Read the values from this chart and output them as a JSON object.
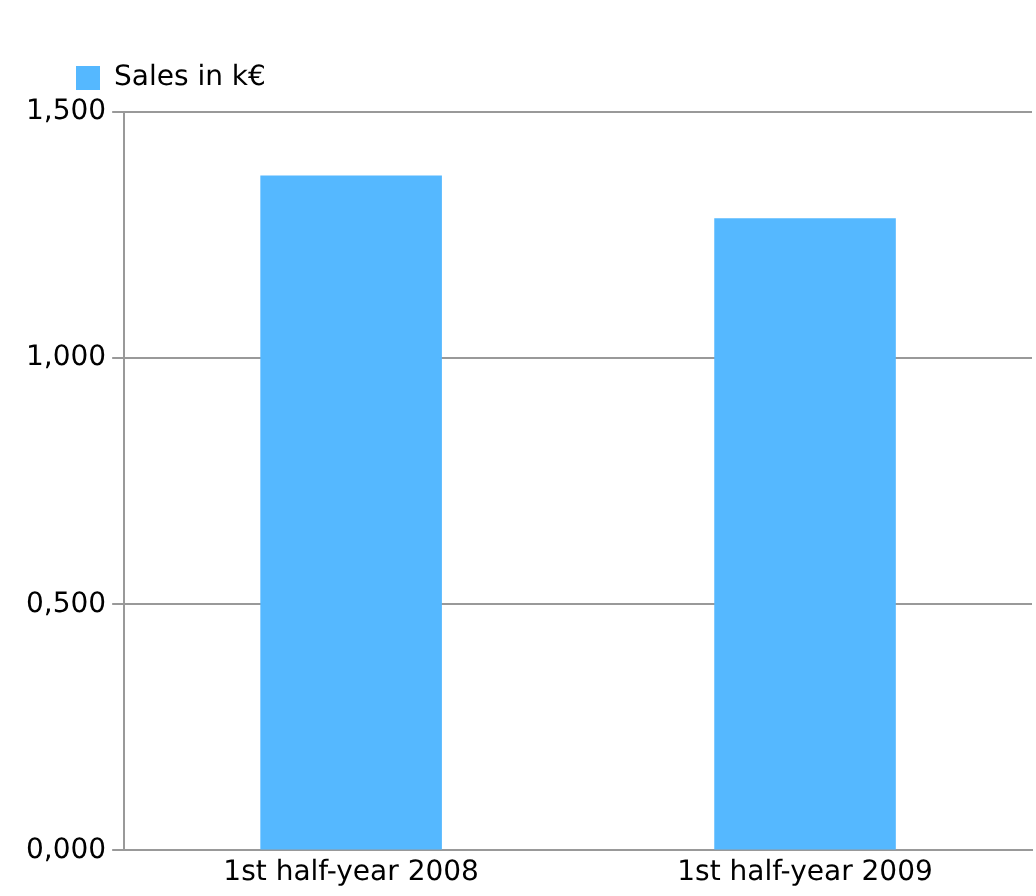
{
  "chart_data": {
    "type": "bar",
    "categories": [
      "1st half-year 2008",
      "1st half-year 2009"
    ],
    "series": [
      {
        "name": "Sales in k€",
        "color": "#55b8ff",
        "values": [
          1.371,
          1.284
        ]
      }
    ],
    "ylim": [
      0,
      1.5
    ],
    "yticks": [
      {
        "value": 0,
        "label": "0,000"
      },
      {
        "value": 0.5,
        "label": "0,500"
      },
      {
        "value": 1,
        "label": "1,000"
      },
      {
        "value": 1.5,
        "label": "1,500"
      }
    ],
    "grid": "y",
    "legend": "top left"
  }
}
